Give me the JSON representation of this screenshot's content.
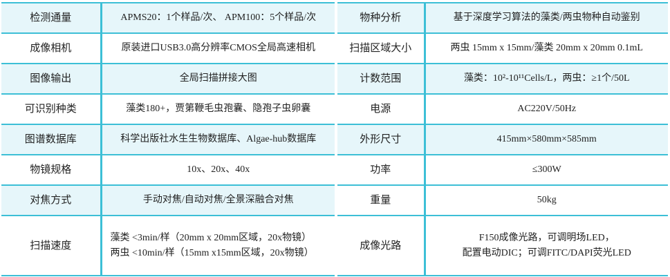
{
  "left_table": [
    {
      "label": "检测通量",
      "value": "APMS20：1个样品/次、 APM100：5个样品/次"
    },
    {
      "label": "成像相机",
      "value": "原装进口USB3.0高分辨率CMOS全局高速相机"
    },
    {
      "label": "图像输出",
      "value": "全局扫描拼接大图"
    },
    {
      "label": "可识别种类",
      "value": "藻类180+，贾第鞭毛虫孢囊、隐孢子虫卵囊"
    },
    {
      "label": "图谱数据库",
      "value": "科学出版社水生生物数据库、Algae-hub数据库"
    },
    {
      "label": "物镜规格",
      "value": "10x、20x、40x"
    },
    {
      "label": "对焦方式",
      "value": "手动对焦/自动对焦/全景深融合对焦"
    },
    {
      "label": "扫描速度",
      "value": "藻类 <3min/样（20mm x 20mm区域，20x物镜）",
      "value2": "两虫 <10min/样（15mm x15mm区域，20x物镜）"
    }
  ],
  "right_table": [
    {
      "label": "物种分析",
      "value": "基于深度学习算法的藻类/两虫物种自动鉴别"
    },
    {
      "label": "扫描区域大小",
      "value": "两虫 15mm x 15mm/藻类 20mm x 20mm  0.1mL"
    },
    {
      "label": "计数范围",
      "value": "藻类：10²-10¹¹Cells/L，两虫：≥1个/50L"
    },
    {
      "label": "电源",
      "value": "AC220V/50Hz"
    },
    {
      "label": "外形尺寸",
      "value": "415mm×580mm×585mm"
    },
    {
      "label": "功率",
      "value": "≤300W"
    },
    {
      "label": "重量",
      "value": "50kg"
    },
    {
      "label": "成像光路",
      "value": "F150成像光路，可调明场LED，",
      "value2": "配置电动DIC；可调FITC/DAPI荧光LED"
    }
  ],
  "colors": {
    "border": "#3cbfd6",
    "row_highlight": "#e6f6fa"
  }
}
